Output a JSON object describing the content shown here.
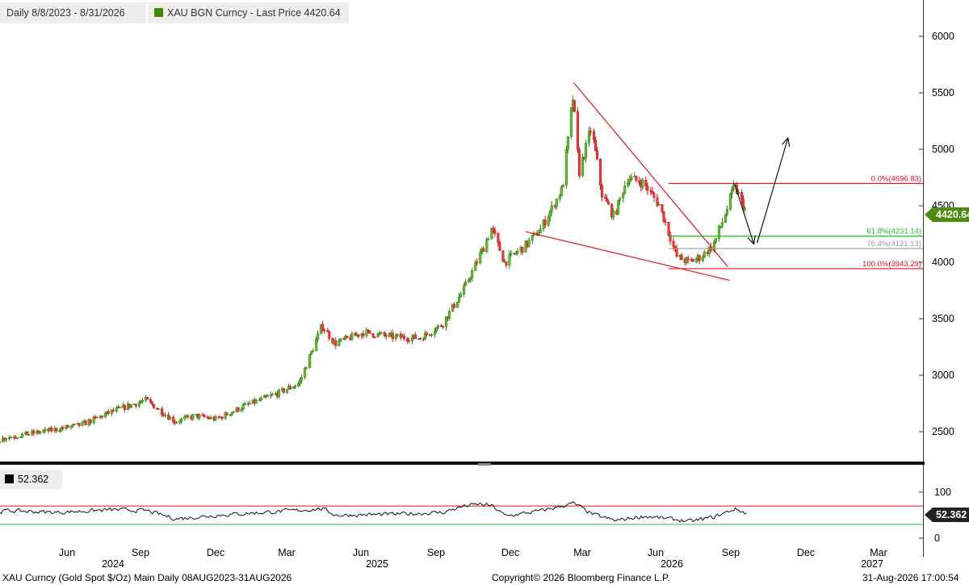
{
  "header": {
    "range_label": "Daily 8/8/2023 - 8/31/2026",
    "series_label": "XAU BGN Curncy - Last Price 4420.64",
    "series_color": "#3f8a0a"
  },
  "rsi_header": {
    "value_label": "52.362",
    "swatch_color": "#000000"
  },
  "price_tag": "4420.64",
  "rsi_tag": "52.362",
  "footer": {
    "left": "XAU Curncy (Gold Spot   $/Oz) Main Daily 08AUG2023-31AUG2026",
    "middle": "Copyright© 2026 Bloomberg Finance L.P.",
    "right": "31-Aug-2026 17:00:54"
  },
  "chart_data": [
    {
      "type": "candlestick",
      "title": "XAU BGN Curncy - Last Price",
      "last_price": 4420.64,
      "y_ticks": [
        2500,
        3000,
        3500,
        4000,
        4500,
        5000,
        5500,
        6000
      ],
      "ylim": [
        2200,
        6300
      ],
      "x_month_labels": [
        "Jun",
        "Sep",
        "Dec",
        "Mar",
        "Jun",
        "Sep",
        "Dec",
        "Mar",
        "Jun",
        "Sep",
        "Dec",
        "Mar"
      ],
      "x_year_labels": [
        "2024",
        "2025",
        "2026",
        "2027"
      ],
      "price_path": [
        [
          "2023-08-08",
          2280
        ],
        [
          "2023-10-15",
          2400
        ],
        [
          "2023-12-01",
          2430
        ],
        [
          "2024-01-15",
          2330
        ],
        [
          "2024-03-01",
          2450
        ],
        [
          "2024-04-15",
          2500
        ],
        [
          "2024-06-01",
          2560
        ],
        [
          "2024-07-10",
          2680
        ],
        [
          "2024-08-20",
          2780
        ],
        [
          "2024-09-25",
          2590
        ],
        [
          "2024-10-20",
          2640
        ],
        [
          "2024-11-15",
          2610
        ],
        [
          "2024-12-20",
          2730
        ],
        [
          "2025-01-30",
          2840
        ],
        [
          "2025-02-25",
          2930
        ],
        [
          "2025-03-12",
          3200
        ],
        [
          "2025-03-25",
          3440
        ],
        [
          "2025-04-10",
          3280
        ],
        [
          "2025-05-15",
          3380
        ],
        [
          "2025-06-20",
          3340
        ],
        [
          "2025-07-25",
          3330
        ],
        [
          "2025-08-20",
          3450
        ],
        [
          "2025-09-15",
          3750
        ],
        [
          "2025-10-05",
          4050
        ],
        [
          "2025-10-20",
          4300
        ],
        [
          "2025-11-05",
          4000
        ],
        [
          "2025-12-01",
          4150
        ],
        [
          "2025-12-20",
          4300
        ],
        [
          "2026-01-15",
          4650
        ],
        [
          "2026-01-28",
          5450
        ],
        [
          "2026-02-05",
          4800
        ],
        [
          "2026-02-20",
          5200
        ],
        [
          "2026-03-05",
          4600
        ],
        [
          "2026-03-20",
          4400
        ],
        [
          "2026-04-05",
          4750
        ],
        [
          "2026-04-25",
          4700
        ],
        [
          "2026-05-15",
          4500
        ],
        [
          "2026-06-05",
          4050
        ],
        [
          "2026-06-20",
          4000
        ],
        [
          "2026-07-05",
          4050
        ],
        [
          "2026-07-20",
          4150
        ],
        [
          "2026-08-05",
          4450
        ],
        [
          "2026-08-15",
          4680
        ],
        [
          "2026-08-31",
          4420.64
        ]
      ],
      "trendlines": [
        {
          "name": "upper",
          "from": [
            "2026-01-29",
            5590
          ],
          "to": [
            "2026-08-07",
            3960
          ]
        },
        {
          "name": "lower",
          "from": [
            "2025-12-01",
            4270
          ],
          "to": [
            "2026-08-09",
            3840
          ]
        }
      ],
      "projection_arrows": [
        {
          "from": [
            "2026-08-15",
            4700
          ],
          "to": [
            "2026-09-08",
            4160
          ]
        },
        {
          "from": [
            "2026-09-12",
            4170
          ],
          "to": [
            "2026-10-20",
            5100
          ]
        }
      ],
      "fib_levels": [
        {
          "label": "0.0%(4696.83)",
          "value": 4696.83,
          "color": "#e8101e"
        },
        {
          "label": "61.8%(4231.14)",
          "value": 4231.14,
          "color": "#1cc41c"
        },
        {
          "label": "76.4%(4121.13)",
          "value": 4121.13,
          "color": "#9a9a9a"
        },
        {
          "label": "100.0%(3943.29)",
          "value": 3943.29,
          "color": "#e8101e"
        }
      ]
    },
    {
      "type": "line",
      "title": "RSI",
      "last_value": 52.362,
      "y_ticks": [
        0,
        100
      ],
      "ylim": [
        -5,
        115
      ],
      "upper_band": 70,
      "lower_band": 30,
      "rsi_path": [
        [
          "2023-08-08",
          62
        ],
        [
          "2023-10-15",
          55
        ],
        [
          "2023-12-01",
          58
        ],
        [
          "2024-01-15",
          48
        ],
        [
          "2024-03-01",
          60
        ],
        [
          "2024-05-01",
          56
        ],
        [
          "2024-07-10",
          62
        ],
        [
          "2024-08-20",
          60
        ],
        [
          "2024-09-25",
          42
        ],
        [
          "2024-11-15",
          50
        ],
        [
          "2025-01-30",
          58
        ],
        [
          "2025-03-25",
          64
        ],
        [
          "2025-04-10",
          50
        ],
        [
          "2025-06-20",
          52
        ],
        [
          "2025-08-20",
          56
        ],
        [
          "2025-09-15",
          70
        ],
        [
          "2025-10-05",
          74
        ],
        [
          "2025-10-20",
          70
        ],
        [
          "2025-11-05",
          48
        ],
        [
          "2025-12-20",
          60
        ],
        [
          "2026-01-28",
          76
        ],
        [
          "2026-02-20",
          52
        ],
        [
          "2026-03-20",
          38
        ],
        [
          "2026-04-25",
          48
        ],
        [
          "2026-06-05",
          40
        ],
        [
          "2026-06-20",
          36
        ],
        [
          "2026-07-20",
          46
        ],
        [
          "2026-08-15",
          64
        ],
        [
          "2026-08-31",
          52.362
        ]
      ]
    }
  ]
}
